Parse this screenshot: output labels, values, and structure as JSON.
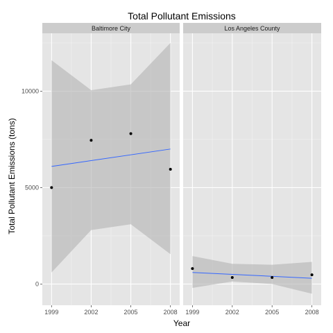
{
  "chart_data": {
    "type": "scatter",
    "title": "Total Pollutant Emissions",
    "xlabel": "Year",
    "ylabel": "Total Pollutant Emissions (tons)",
    "x_ticks": [
      1999,
      2002,
      2005,
      2008
    ],
    "y_ticks": [
      0,
      5000,
      10000
    ],
    "xlim": [
      1998.3,
      2008.7
    ],
    "ylim": [
      -1100,
      13000
    ],
    "grid": true,
    "legend": "none",
    "panels": [
      {
        "name": "Baltimore City",
        "points": [
          {
            "x": 1999,
            "y": 5000
          },
          {
            "x": 2002,
            "y": 7450
          },
          {
            "x": 2005,
            "y": 7800
          },
          {
            "x": 2008,
            "y": 5950
          }
        ],
        "fit_line": [
          {
            "x": 1999,
            "y": 6100
          },
          {
            "x": 2008,
            "y": 7000
          }
        ],
        "ribbon": [
          {
            "x": 1999,
            "lo": 600,
            "hi": 11600
          },
          {
            "x": 2002,
            "lo": 2800,
            "hi": 10050
          },
          {
            "x": 2005,
            "lo": 3100,
            "hi": 10350
          },
          {
            "x": 2008,
            "lo": 1550,
            "hi": 12500
          }
        ]
      },
      {
        "name": "Los Angeles County",
        "points": [
          {
            "x": 1999,
            "y": 800
          },
          {
            "x": 2002,
            "y": 340
          },
          {
            "x": 2005,
            "y": 340
          },
          {
            "x": 2008,
            "y": 480
          }
        ],
        "fit_line": [
          {
            "x": 1999,
            "y": 600
          },
          {
            "x": 2008,
            "y": 300
          }
        ],
        "ribbon": [
          {
            "x": 1999,
            "lo": -200,
            "hi": 1450
          },
          {
            "x": 2002,
            "lo": 130,
            "hi": 1050
          },
          {
            "x": 2005,
            "lo": 0,
            "hi": 1000
          },
          {
            "x": 2008,
            "lo": -500,
            "hi": 1150
          }
        ]
      }
    ],
    "colors": {
      "panel_bg": "#e5e5e5",
      "strip_bg": "#cccccc",
      "grid_major": "#ffffff",
      "grid_minor": "#f2f2f2",
      "ribbon": "#b3b3b3",
      "fit_line": "#3366ff",
      "point": "#000000"
    }
  }
}
